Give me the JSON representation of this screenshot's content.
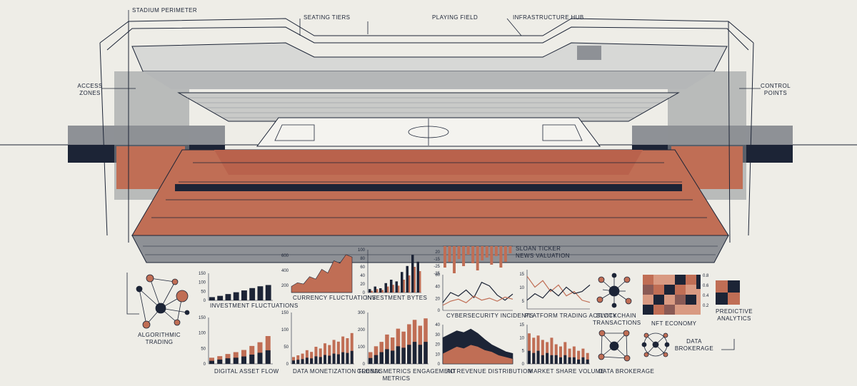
{
  "colors": {
    "navy": "#1c2436",
    "rust": "#c06e55",
    "salmon": "#d99a82",
    "gray": "#8e9196",
    "lightgray": "#c9cac8",
    "paper": "#eeede7"
  },
  "stadium": {
    "labels": {
      "perimeter": "STADIUM PERIMETER",
      "tiers": "SEATING TIERS",
      "field": "PLAYING FIELD",
      "hub": "INFRASTRUCTURE HUB",
      "access_line1": "ACCESS",
      "access_line2": "ZONES",
      "control_line1": "CONTROL",
      "control_line2": "POINTS"
    }
  },
  "panels": {
    "algorithmic_trading_line1": "ALGORITHMIC",
    "algorithmic_trading_line2": "TRADING",
    "investment_fluctuations": "INVESTMENT FLUCTUATIONS",
    "currency_fluctuations": "CURRENCY FLUCTUATIONS",
    "investment_bytes": "INVESTMENT BYTES",
    "sloan_ticker_line1": "SLOAN TICKER",
    "sloan_ticker_line2": "NEWS VALUATION",
    "cybersecurity_incidents": "CYBERSECURITY INCIDENTS",
    "platform_trading_activity": "PLATFORM TRADING ACTIVITY",
    "blockchain_line1": "BLOCKCHAIN",
    "blockchain_line2": "TRANSACTIONS",
    "nft_economy": "NFT ECONOMY",
    "predictive_line1": "PREDICTIVE",
    "predictive_line2": "ANALYTICS",
    "digital_asset_flow": "DIGITAL ASSET FLOW",
    "data_monetization_trends": "DATA MONETIZATION TRENDS",
    "global_metrics_line1": "GLOBAL METRICS ENGAGEMENT",
    "global_metrics_line2": "METRICS",
    "ad_revenue_distribution": "AD REVENUE DISTRIBUTION",
    "market_share_volume": "MARKET SHARE VOLUME",
    "data_brokerage_line1": "DATA",
    "data_brokerage_line2": "BROKERAGE",
    "data_brokerage_b": "DATA BROKERAGE"
  },
  "chart_data": [
    {
      "type": "bar",
      "title": "INVESTMENT FLUCTUATIONS",
      "yticks": [
        "150",
        "100",
        "50",
        "0"
      ],
      "ylim": [
        0,
        150
      ],
      "values": [
        18,
        25,
        35,
        45,
        55,
        68,
        78,
        85
      ]
    },
    {
      "type": "area",
      "title": "CURRENCY FLUCTUATIONS",
      "yticks": [
        "600",
        "400",
        "200"
      ],
      "ylim": [
        0,
        700
      ],
      "values": [
        100,
        160,
        140,
        260,
        220,
        380,
        320,
        520,
        480,
        620,
        580
      ]
    },
    {
      "type": "bar",
      "title": "INVESTMENT BYTES",
      "yticks": [
        "100",
        "80",
        "60",
        "40",
        "20",
        "0"
      ],
      "ylim": [
        0,
        100
      ],
      "series": [
        {
          "values": [
            8,
            14,
            10,
            22,
            30,
            26,
            48,
            62,
            88,
            72
          ]
        },
        {
          "values": [
            4,
            8,
            6,
            14,
            18,
            16,
            30,
            40,
            60,
            50
          ]
        }
      ]
    },
    {
      "type": "bar",
      "title": "SLOAN TICKER",
      "yticks": [
        "20",
        "-15",
        "-25",
        "-35"
      ],
      "values": [
        30,
        22,
        38,
        18,
        28,
        12,
        24,
        34,
        20,
        16,
        26,
        14,
        30,
        22,
        10
      ]
    },
    {
      "type": "line",
      "title": "CYBERSECURITY INCIDENTS",
      "yticks": [
        "60",
        "40",
        "20",
        "0"
      ],
      "ylim": [
        0,
        70
      ],
      "series": [
        {
          "values": [
            15,
            35,
            28,
            40,
            25,
            55,
            48,
            30,
            20,
            32
          ]
        },
        {
          "values": [
            10,
            18,
            22,
            15,
            28,
            20,
            24,
            18,
            26,
            22
          ]
        }
      ]
    },
    {
      "type": "line",
      "title": "PLATFORM TRADING ACTIVITY",
      "yticks": [
        "15",
        "10",
        "5"
      ],
      "ylim": [
        0,
        18
      ],
      "series": [
        {
          "values": [
            15,
            10,
            13,
            8,
            11,
            6,
            8,
            4,
            3
          ]
        },
        {
          "values": [
            4,
            7,
            5,
            9,
            6,
            10,
            7,
            8,
            11
          ]
        }
      ]
    },
    {
      "type": "heatmap",
      "title": "NFT ECONOMY",
      "colorbar": [
        "0.8",
        "0.6",
        "0.4",
        "0.2"
      ],
      "values": [
        [
          0.9,
          0.5,
          0.7,
          0.3,
          0.8
        ],
        [
          0.4,
          0.8,
          0.2,
          0.9,
          0.5
        ],
        [
          0.7,
          0.3,
          0.6,
          0.4,
          0.2
        ],
        [
          0.2,
          0.9,
          0.4,
          0.7,
          0.6
        ]
      ]
    },
    {
      "type": "heatmap",
      "title": "PREDICTIVE ANALYTICS",
      "values": [
        [
          0.8,
          0.3
        ],
        [
          0.2,
          0.9
        ]
      ]
    },
    {
      "type": "bar",
      "title": "DIGITAL ASSET FLOW",
      "yticks": [
        "150",
        "100",
        "50",
        "0"
      ],
      "ylim": [
        0,
        150
      ],
      "series": [
        {
          "values": [
            20,
            25,
            32,
            38,
            45,
            58,
            70,
            90
          ]
        },
        {
          "values": [
            10,
            14,
            18,
            20,
            24,
            30,
            36,
            44
          ]
        }
      ]
    },
    {
      "type": "bar",
      "title": "DATA MONETIZATION TRENDS",
      "yticks": [
        "150",
        "100",
        "50",
        "0"
      ],
      "ylim": [
        0,
        150
      ],
      "series": [
        {
          "values": [
            20,
            25,
            30,
            40,
            35,
            50,
            45,
            60,
            55,
            70,
            65,
            80,
            75,
            90
          ]
        },
        {
          "values": [
            10,
            12,
            14,
            18,
            16,
            22,
            20,
            26,
            24,
            30,
            28,
            34,
            32,
            38
          ]
        }
      ]
    },
    {
      "type": "bar",
      "title": "GLOBAL METRICS ENGAGEMENT",
      "yticks": [
        "300",
        "200",
        "100",
        "0"
      ],
      "ylim": [
        0,
        350
      ],
      "series": [
        {
          "values": [
            80,
            120,
            150,
            200,
            180,
            240,
            220,
            270,
            300,
            260,
            310
          ]
        },
        {
          "values": [
            40,
            60,
            80,
            100,
            90,
            120,
            110,
            130,
            150,
            130,
            150
          ]
        }
      ]
    },
    {
      "type": "area",
      "title": "AD REVENUE DISTRIBUTION",
      "yticks": [
        "40",
        "30",
        "20",
        "10",
        "0"
      ],
      "ylim": [
        0,
        45
      ],
      "series": [
        {
          "values": [
            30,
            34,
            38,
            36,
            40,
            35,
            28,
            22,
            18,
            14,
            12
          ]
        },
        {
          "values": [
            12,
            16,
            20,
            18,
            22,
            20,
            16,
            14,
            10,
            8,
            6
          ]
        }
      ]
    },
    {
      "type": "bar",
      "title": "MARKET SHARE VOLUME",
      "yticks": [
        "15",
        "10",
        "5",
        "0"
      ],
      "ylim": [
        0,
        18
      ],
      "series": [
        {
          "values": [
            14,
            12,
            13,
            11,
            10,
            12,
            9,
            8,
            10,
            7,
            8,
            6,
            7,
            5
          ]
        },
        {
          "values": [
            6,
            5,
            6,
            4,
            5,
            4,
            4,
            3,
            4,
            3,
            3,
            2,
            3,
            2
          ]
        }
      ]
    }
  ]
}
